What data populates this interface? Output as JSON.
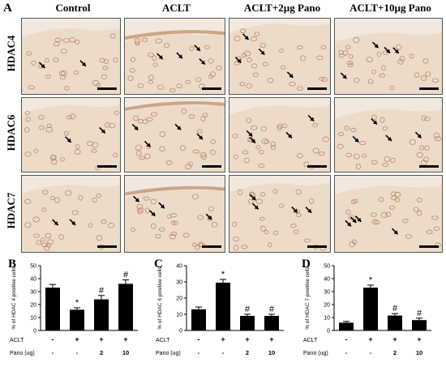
{
  "panels": {
    "a": "A",
    "b": "B",
    "c": "C",
    "d": "D"
  },
  "columns": [
    "Control",
    "ACLT",
    "ACLT+2µg Pano",
    "ACLT+10µg Pano"
  ],
  "rows": [
    "HDAC4",
    "HDAC6",
    "HDAC7"
  ],
  "colors": {
    "tissue_light": "#f3e8dd",
    "tissue_mid": "#e9d5c2",
    "stain": "#b07a55",
    "bar": "#000000"
  },
  "treatment_table": {
    "aclt_label": "ACLT",
    "pano_label": "Pano (ug)",
    "aclt": [
      "-",
      "+",
      "+",
      "+"
    ],
    "pano": [
      "-",
      "-",
      "2",
      "10"
    ]
  },
  "chart_data": [
    {
      "type": "bar",
      "ylabel": "% of HDAC 4 positive cells",
      "ylim": [
        0,
        50
      ],
      "yticks": [
        0,
        10,
        20,
        30,
        40,
        50
      ],
      "categories": [
        "Control",
        "ACLT",
        "ACLT+2µg Pano",
        "ACLT+10µg Pano"
      ],
      "values": [
        33,
        16,
        24,
        36
      ],
      "errors": [
        2.5,
        1.5,
        3,
        3
      ],
      "marks": [
        "",
        "*",
        "#",
        "#"
      ]
    },
    {
      "type": "bar",
      "ylabel": "% of HDAC 6 positive cells",
      "ylim": [
        0,
        40
      ],
      "yticks": [
        0,
        10,
        20,
        30,
        40
      ],
      "categories": [
        "Control",
        "ACLT",
        "ACLT+2µg Pano",
        "ACLT+10µg Pano"
      ],
      "values": [
        13,
        29.5,
        9,
        9
      ],
      "errors": [
        1.5,
        2,
        1,
        1
      ],
      "marks": [
        "",
        "*",
        "#",
        "#"
      ]
    },
    {
      "type": "bar",
      "ylabel": "% of HDAC 7 positive cells",
      "ylim": [
        0,
        50
      ],
      "yticks": [
        0,
        10,
        20,
        30,
        40,
        50
      ],
      "categories": [
        "Control",
        "ACLT",
        "ACLT+2µg Pano",
        "ACLT+10µg Pano"
      ],
      "values": [
        6,
        33,
        11.5,
        8
      ],
      "errors": [
        1,
        2,
        1.5,
        1.5
      ],
      "marks": [
        "",
        "*",
        "#",
        "#"
      ]
    }
  ]
}
